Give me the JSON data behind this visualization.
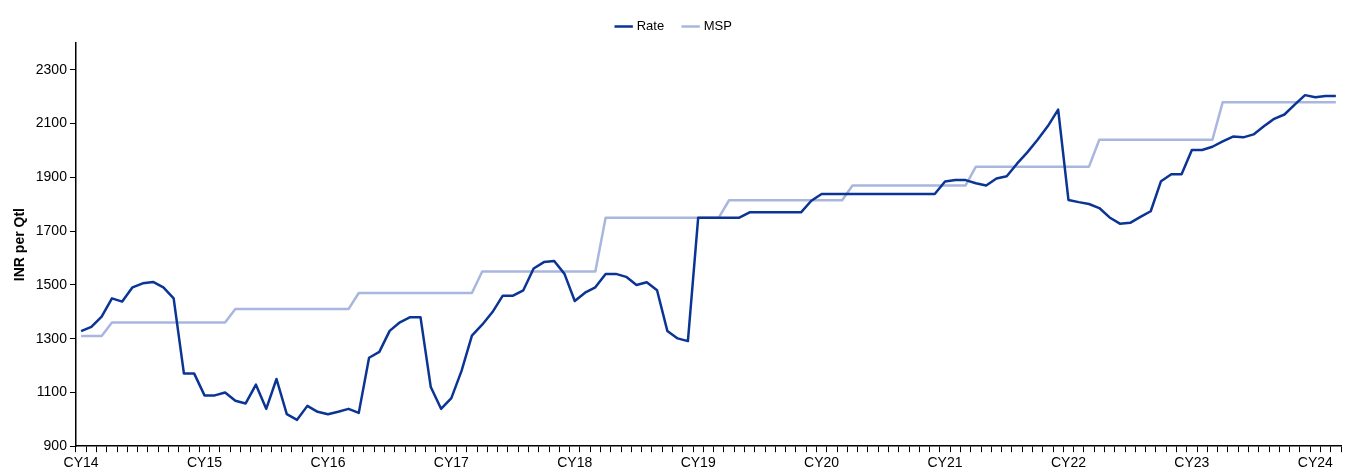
{
  "chart_data": {
    "type": "line",
    "ylabel": "INR per Qtl",
    "categories": [
      "CY14",
      null,
      null,
      null,
      null,
      null,
      null,
      null,
      null,
      null,
      null,
      null,
      "CY15",
      null,
      null,
      null,
      null,
      null,
      null,
      null,
      null,
      null,
      null,
      null,
      "CY16",
      null,
      null,
      null,
      null,
      null,
      null,
      null,
      null,
      null,
      null,
      null,
      "CY17",
      null,
      null,
      null,
      null,
      null,
      null,
      null,
      null,
      null,
      null,
      null,
      "CY18",
      null,
      null,
      null,
      null,
      null,
      null,
      null,
      null,
      null,
      null,
      null,
      "CY19",
      null,
      null,
      null,
      null,
      null,
      null,
      null,
      null,
      null,
      null,
      null,
      "CY20",
      null,
      null,
      null,
      null,
      null,
      null,
      null,
      null,
      null,
      null,
      null,
      "CY21",
      null,
      null,
      null,
      null,
      null,
      null,
      null,
      null,
      null,
      null,
      null,
      "CY22",
      null,
      null,
      null,
      null,
      null,
      null,
      null,
      null,
      null,
      null,
      null,
      "CY23",
      null,
      null,
      null,
      null,
      null,
      null,
      null,
      null,
      null,
      null,
      null,
      "CY24",
      null,
      null
    ],
    "series": [
      {
        "name": "Rate",
        "color": "#0b3594",
        "values": [
          1328,
          1344,
          1382,
          1450,
          1438,
          1491,
          1506,
          1511,
          1491,
          1450,
          1170,
          1170,
          1089,
          1089,
          1100,
          1069,
          1059,
          1129,
          1039,
          1150,
          1019,
          998,
          1050,
          1028,
          1019,
          1028,
          1039,
          1024,
          1229,
          1251,
          1329,
          1361,
          1380,
          1380,
          1120,
          1039,
          1079,
          1181,
          1311,
          1352,
          1399,
          1460,
          1460,
          1480,
          1561,
          1585,
          1589,
          1541,
          1440,
          1471,
          1491,
          1541,
          1541,
          1530,
          1500,
          1510,
          1480,
          1329,
          1301,
          1291,
          1750,
          1750,
          1750,
          1750,
          1750,
          1770,
          1770,
          1770,
          1770,
          1770,
          1770,
          1813,
          1838,
          1838,
          1838,
          1838,
          1838,
          1838,
          1838,
          1838,
          1838,
          1838,
          1838,
          1838,
          1885,
          1890,
          1890,
          1878,
          1870,
          1896,
          1904,
          1951,
          1993,
          2040,
          2091,
          2152,
          1816,
          1808,
          1801,
          1786,
          1751,
          1728,
          1731,
          1753,
          1774,
          1886,
          1912,
          1912,
          2002,
          2002,
          2014,
          2034,
          2052,
          2049,
          2060,
          2090,
          2118,
          2134,
          2171,
          2206,
          2198,
          2203,
          2203
        ]
      },
      {
        "name": "MSP",
        "color": "#a9b7de",
        "values": [
          1310,
          1310,
          1310,
          1360,
          1360,
          1360,
          1360,
          1360,
          1360,
          1360,
          1360,
          1360,
          1360,
          1360,
          1360,
          1410,
          1410,
          1410,
          1410,
          1410,
          1410,
          1410,
          1410,
          1410,
          1410,
          1410,
          1410,
          1470,
          1470,
          1470,
          1470,
          1470,
          1470,
          1470,
          1470,
          1470,
          1470,
          1470,
          1470,
          1550,
          1550,
          1550,
          1550,
          1550,
          1550,
          1550,
          1550,
          1550,
          1550,
          1550,
          1550,
          1750,
          1750,
          1750,
          1750,
          1750,
          1750,
          1750,
          1750,
          1750,
          1750,
          1750,
          1750,
          1815,
          1815,
          1815,
          1815,
          1815,
          1815,
          1815,
          1815,
          1815,
          1815,
          1815,
          1815,
          1870,
          1870,
          1870,
          1870,
          1870,
          1870,
          1870,
          1870,
          1870,
          1870,
          1870,
          1870,
          1940,
          1940,
          1940,
          1940,
          1940,
          1940,
          1940,
          1940,
          1940,
          1940,
          1940,
          1940,
          2040,
          2040,
          2040,
          2040,
          2040,
          2040,
          2040,
          2040,
          2040,
          2040,
          2040,
          2040,
          2180,
          2180,
          2180,
          2180,
          2180,
          2180,
          2180,
          2180,
          2180,
          2180,
          2180,
          2180
        ]
      }
    ],
    "ylim": [
      900,
      2400
    ],
    "yticks": [
      900,
      1100,
      1300,
      1500,
      1700,
      1900,
      2100,
      2300
    ],
    "legend": "top",
    "grid": false
  }
}
